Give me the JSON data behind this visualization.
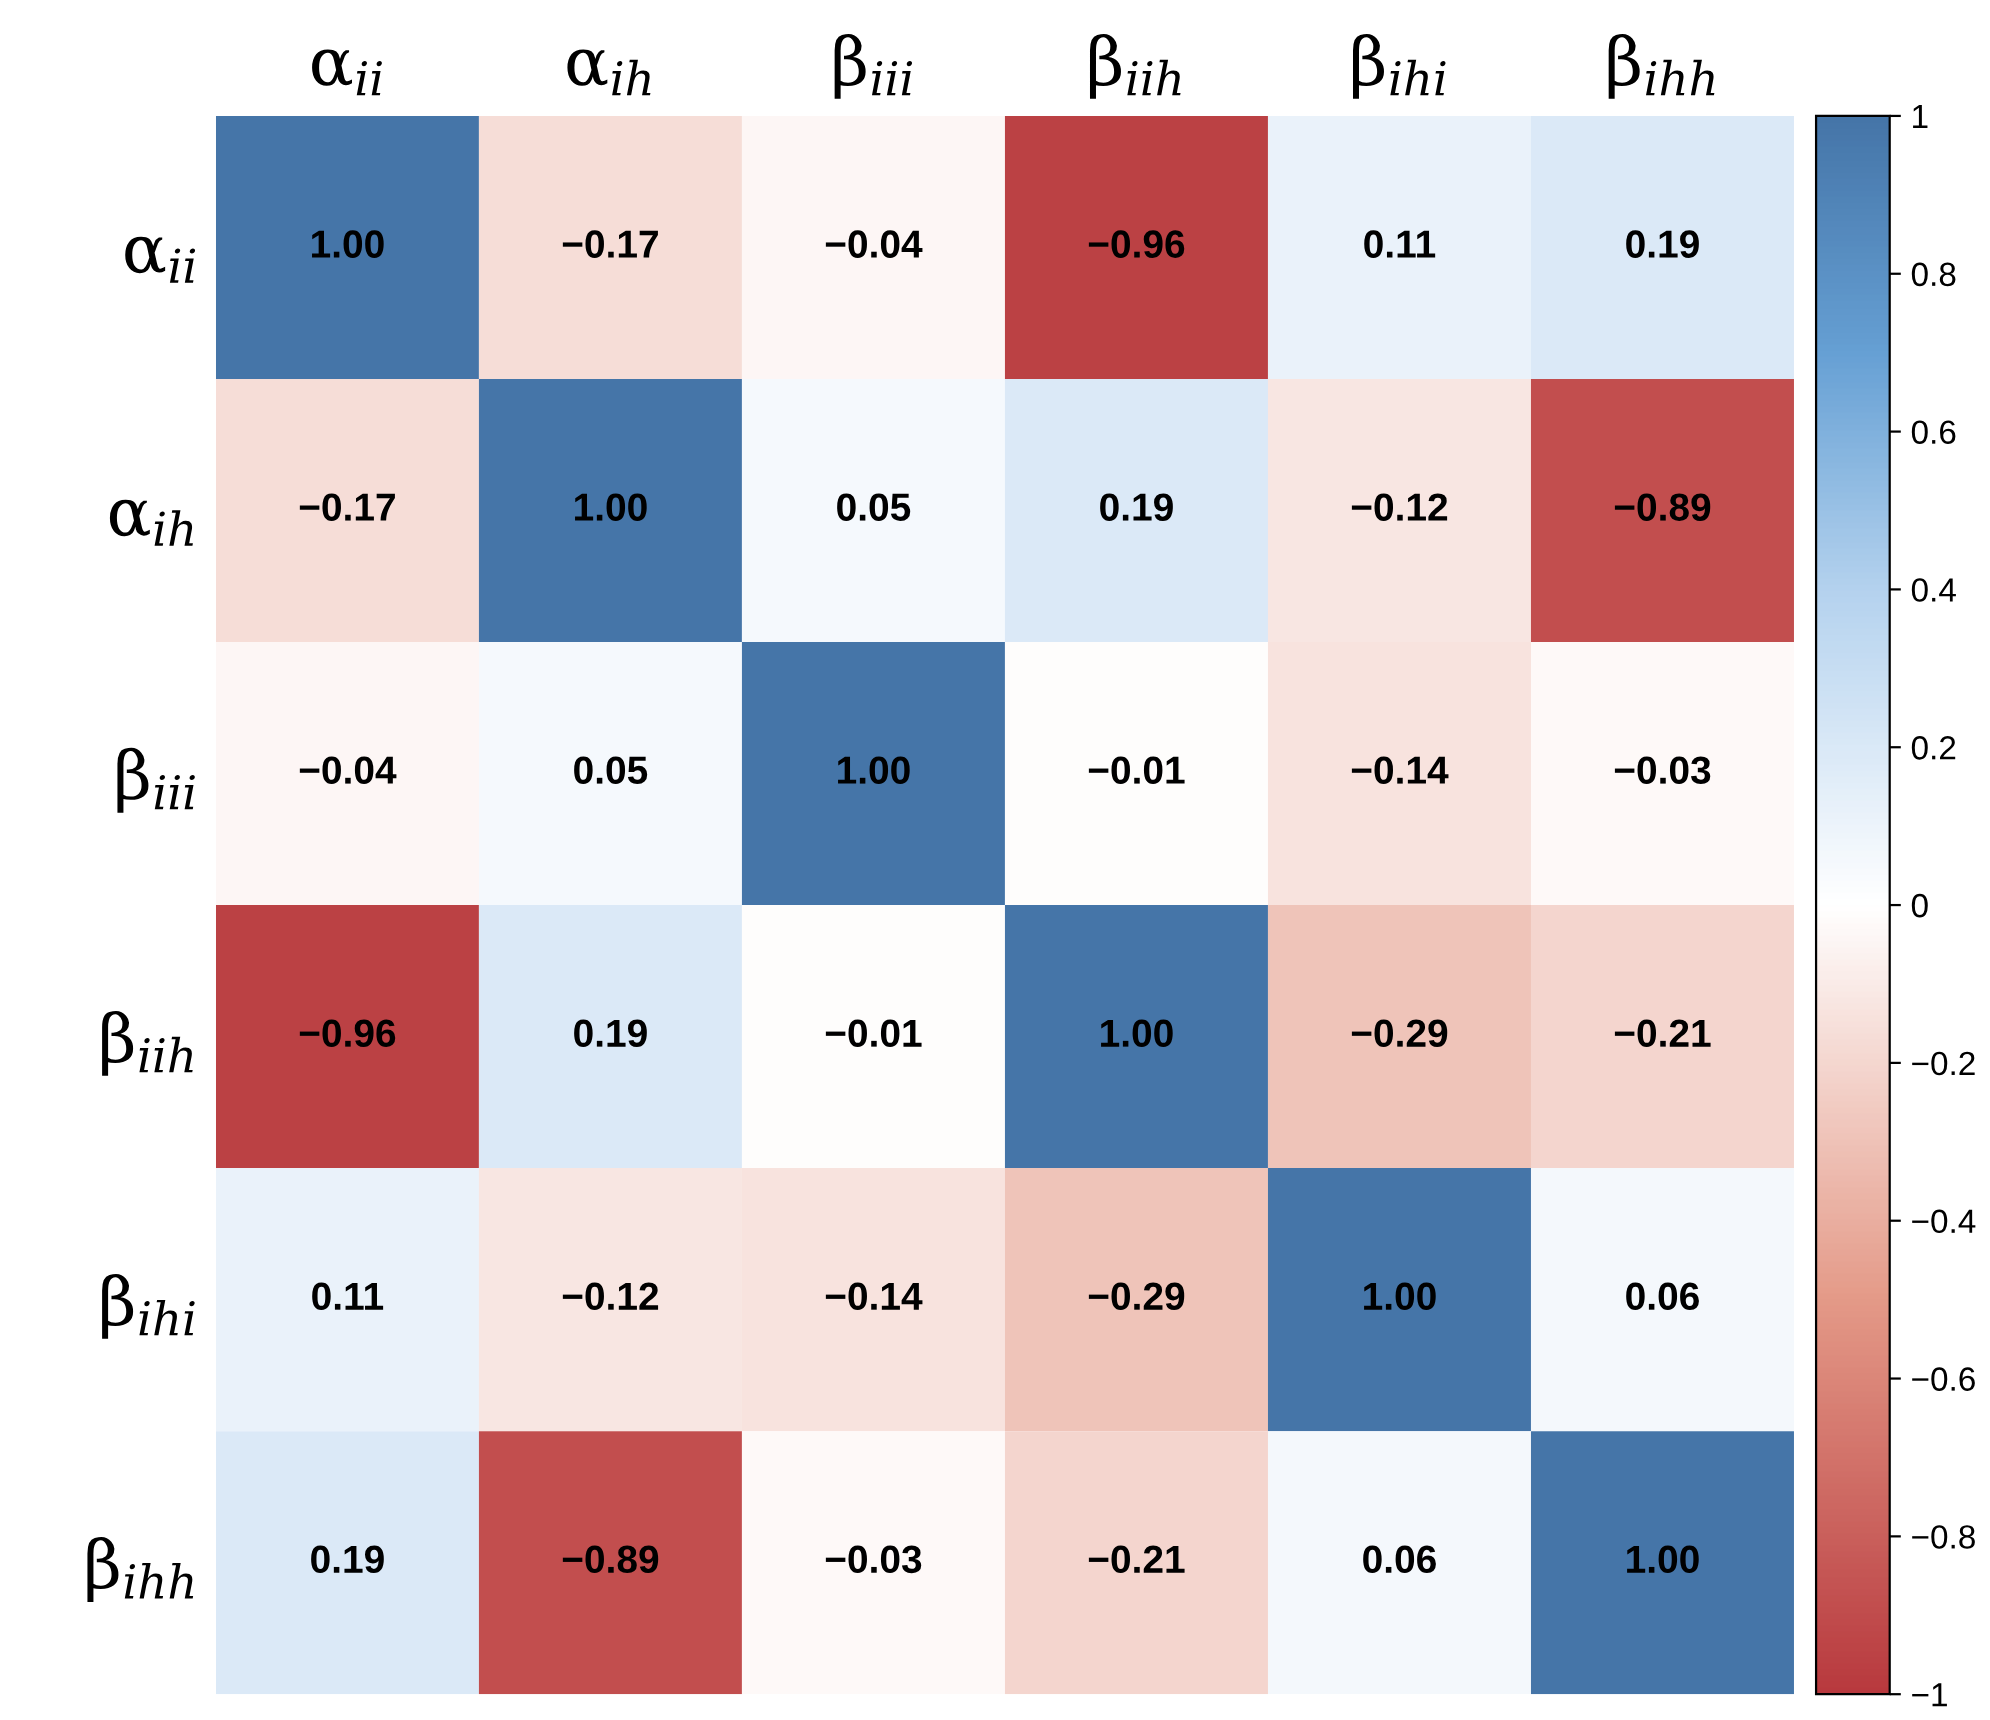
{
  "chart_data": {
    "type": "heatmap",
    "categories": [
      "α$_{ii}$",
      "α$_{ih}$",
      "β$_{iii}$",
      "β$_{iih}$",
      "β$_{ihi}$",
      "β$_{ihh}$"
    ],
    "y_categories": [
      "α$_{ii}$",
      "α$_{ih}$",
      "β$_{iii}$",
      "β$_{iih}$",
      "β$_{ihi}$",
      "β$_{ihh}$"
    ],
    "cells": [
      [
        1.0,
        -0.17,
        -0.04,
        -0.96,
        0.11,
        0.19
      ],
      [
        -0.17,
        1.0,
        0.05,
        0.19,
        -0.12,
        -0.89
      ],
      [
        -0.04,
        0.05,
        1.0,
        -0.01,
        -0.14,
        -0.03
      ],
      [
        -0.96,
        0.19,
        -0.01,
        1.0,
        -0.29,
        -0.21
      ],
      [
        0.11,
        -0.12,
        -0.14,
        -0.29,
        1.0,
        0.06
      ],
      [
        0.19,
        -0.89,
        -0.03,
        -0.21,
        0.06,
        1.0
      ]
    ],
    "cell_labels": [
      [
        "1.00",
        "−0.17",
        "−0.04",
        "−0.96",
        "0.11",
        "0.19"
      ],
      [
        "−0.17",
        "1.00",
        "0.05",
        "0.19",
        "−0.12",
        "−0.89"
      ],
      [
        "−0.04",
        "0.05",
        "1.00",
        "−0.01",
        "−0.14",
        "−0.03"
      ],
      [
        "−0.96",
        "0.19",
        "−0.01",
        "1.00",
        "−0.29",
        "−0.21"
      ],
      [
        "0.11",
        "−0.12",
        "−0.14",
        "−0.29",
        "1.00",
        "0.06"
      ],
      [
        "0.19",
        "−0.89",
        "−0.03",
        "−0.21",
        "0.06",
        "1.00"
      ]
    ],
    "clim": [
      -1,
      1
    ],
    "cticks": [
      {
        "value": -1,
        "label": "−1"
      },
      {
        "value": -0.8,
        "label": "−0.8"
      },
      {
        "value": -0.6,
        "label": "−0.6"
      },
      {
        "value": -0.4,
        "label": "−0.4"
      },
      {
        "value": -0.2,
        "label": "−0.2"
      },
      0,
      0.2,
      0.4,
      0.6,
      0.8,
      1
    ]
  }
}
